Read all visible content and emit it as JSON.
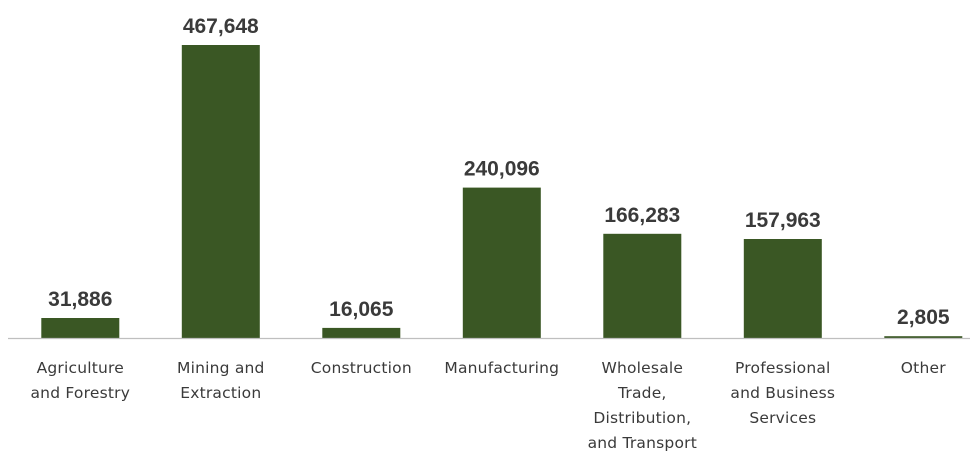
{
  "chart_data": {
    "type": "bar",
    "title": "",
    "xlabel": "",
    "ylabel": "",
    "ylim": [
      0,
      467648
    ],
    "grid": false,
    "legend": "none",
    "bar_color": "#3a5724",
    "categories": [
      [
        "Agriculture",
        "and Forestry"
      ],
      [
        "Mining and",
        "Extraction"
      ],
      [
        "Construction"
      ],
      [
        "Manufacturing"
      ],
      [
        "Wholesale",
        "Trade,",
        "Distribution,",
        "and Transport"
      ],
      [
        "Professional",
        "and Business",
        "Services"
      ],
      [
        "Other"
      ]
    ],
    "values": [
      31886,
      467648,
      16065,
      240096,
      166283,
      157963,
      2805
    ],
    "value_labels": [
      "31,886",
      "467,648",
      "16,065",
      "240,096",
      "166,283",
      "157,963",
      "2,805"
    ]
  }
}
